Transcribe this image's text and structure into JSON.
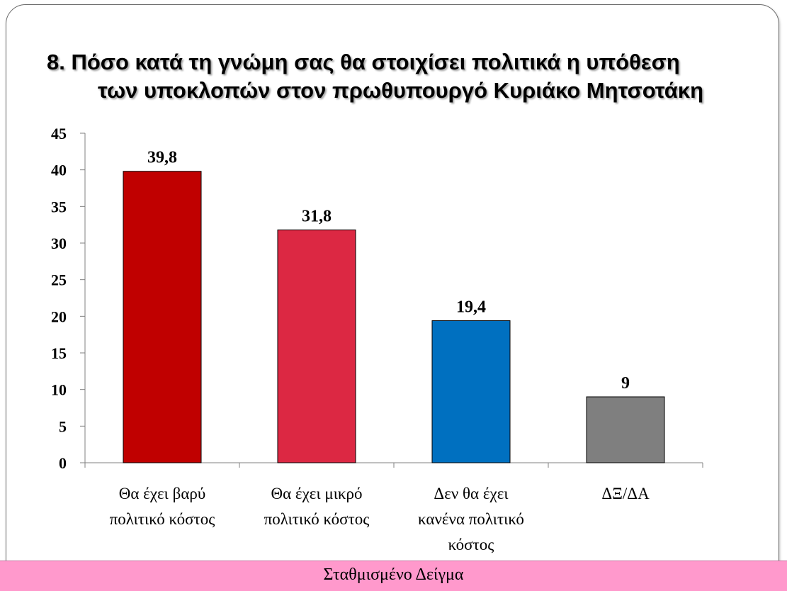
{
  "title": {
    "line1": "8. Πόσο κατά τη γνώμη σας θα στοιχίσει πολιτικά η υπόθεση",
    "line2": "των υποκλοπών στον πρωθυπουργό Κυριάκο Μητσοτάκη"
  },
  "footer": "Σταθμισμένο Δείγμα",
  "chart_data": {
    "type": "bar",
    "title": "8. Πόσο κατά τη γνώμη σας θα στοιχίσει πολιτικά η υπόθεση των υποκλοπών στον πρωθυπουργό Κυριάκο Μητσοτάκη",
    "categories": [
      [
        "Θα έχει βαρύ",
        "πολιτικό κόστος"
      ],
      [
        "Θα έχει μικρό",
        "πολιτικό κόστος"
      ],
      [
        "Δεν θα έχει",
        "κανένα πολιτικό",
        "κόστος"
      ],
      [
        "ΔΞ/ΔΑ"
      ]
    ],
    "values": [
      39.8,
      31.8,
      19.4,
      9
    ],
    "data_labels": [
      "39,8",
      "31,8",
      "19,4",
      "9"
    ],
    "colors": [
      "#c00000",
      "#dc2843",
      "#0070c0",
      "#7f7f7f"
    ],
    "ylim": [
      0,
      45
    ],
    "yticks": [
      0,
      5,
      10,
      15,
      20,
      25,
      30,
      35,
      40,
      45
    ],
    "xlabel": "",
    "ylabel": "",
    "grid": false,
    "legend": "none"
  }
}
